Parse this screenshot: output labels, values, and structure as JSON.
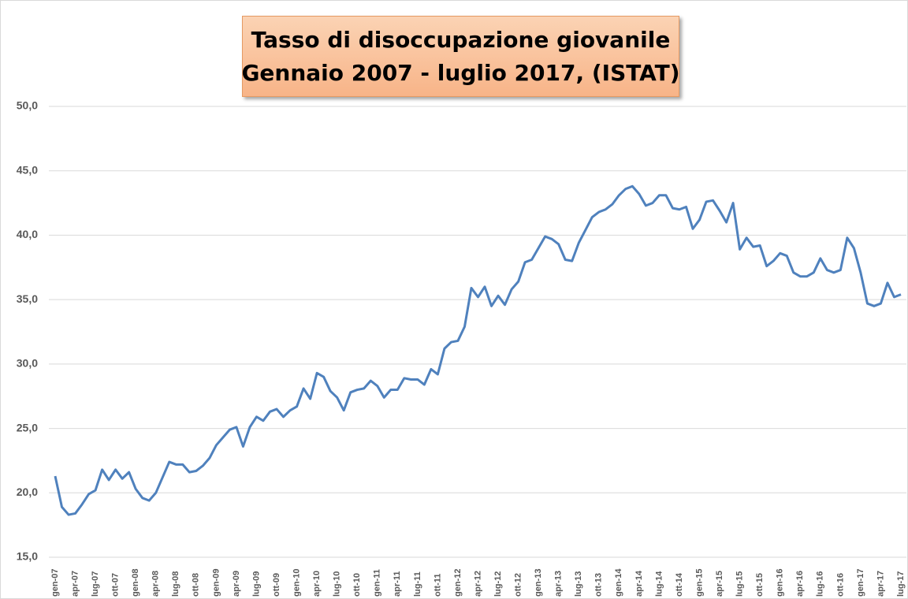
{
  "chart_data": {
    "type": "line",
    "title": "Tasso di disoccupazione giovanile",
    "subtitle": "Gennaio 2007 - luglio 2017, (ISTAT)",
    "categories": [
      "gen-07",
      null,
      null,
      "apr-07",
      null,
      null,
      "lug-07",
      null,
      null,
      "ott-07",
      null,
      null,
      "gen-08",
      null,
      null,
      "apr-08",
      null,
      null,
      "lug-08",
      null,
      null,
      "ott-08",
      null,
      null,
      "gen-09",
      null,
      null,
      "apr-09",
      null,
      null,
      "lug-09",
      null,
      null,
      "ott-09",
      null,
      null,
      "gen-10",
      null,
      null,
      "apr-10",
      null,
      null,
      "lug-10",
      null,
      null,
      "ott-10",
      null,
      null,
      "gen-11",
      null,
      null,
      "apr-11",
      null,
      null,
      "lug-11",
      null,
      null,
      "ott-11",
      null,
      null,
      "gen-12",
      null,
      null,
      "apr-12",
      null,
      null,
      "lug-12",
      null,
      null,
      "ott-12",
      null,
      null,
      "gen-13",
      null,
      null,
      "apr-13",
      null,
      null,
      "lug-13",
      null,
      null,
      "ott-13",
      null,
      null,
      "gen-14",
      null,
      null,
      "apr-14",
      null,
      null,
      "lug-14",
      null,
      null,
      "ott-14",
      null,
      null,
      "gen-15",
      null,
      null,
      "apr-15",
      null,
      null,
      "lug-15",
      null,
      null,
      "ott-15",
      null,
      null,
      "gen-16",
      null,
      null,
      "apr-16",
      null,
      null,
      "lug-16",
      null,
      null,
      "ott-16",
      null,
      null,
      "gen-17",
      null,
      null,
      "apr-17",
      null,
      null,
      "lug-17"
    ],
    "values": [
      21.3,
      18.9,
      18.3,
      18.4,
      19.1,
      19.9,
      20.2,
      21.8,
      21.0,
      21.8,
      21.1,
      21.6,
      20.3,
      19.6,
      19.4,
      20.0,
      21.2,
      22.4,
      22.2,
      22.2,
      21.6,
      21.7,
      22.1,
      22.7,
      23.7,
      24.3,
      24.9,
      25.1,
      23.6,
      25.1,
      25.9,
      25.6,
      26.3,
      26.5,
      25.9,
      26.4,
      26.7,
      28.1,
      27.3,
      29.3,
      29.0,
      27.9,
      27.4,
      26.4,
      27.8,
      28.0,
      28.1,
      28.7,
      28.3,
      27.4,
      28.0,
      28.0,
      28.9,
      28.8,
      28.8,
      28.4,
      29.6,
      29.2,
      31.2,
      31.7,
      31.8,
      32.9,
      35.9,
      35.2,
      36.0,
      34.5,
      35.3,
      34.6,
      35.8,
      36.4,
      37.9,
      38.1,
      39.0,
      39.9,
      39.7,
      39.3,
      38.1,
      38.0,
      39.4,
      40.4,
      41.4,
      41.8,
      42.0,
      42.4,
      43.1,
      43.6,
      43.8,
      43.2,
      42.3,
      42.5,
      43.1,
      43.1,
      42.1,
      42.0,
      42.2,
      40.5,
      41.2,
      42.6,
      42.7,
      41.9,
      41.0,
      42.5,
      38.9,
      39.8,
      39.1,
      39.2,
      37.6,
      38.0,
      38.6,
      38.4,
      37.1,
      36.8,
      36.8,
      37.1,
      38.2,
      37.3,
      37.1,
      37.3,
      39.8,
      39.0,
      37.1,
      34.7,
      34.5,
      34.7,
      36.3,
      35.2,
      35.4
    ],
    "color": "#4f81bd",
    "ylim": [
      15,
      50
    ],
    "yticks": [
      {
        "value": 15,
        "label": "15,0"
      },
      {
        "value": 20,
        "label": "20,0"
      },
      {
        "value": 25,
        "label": "25,0"
      },
      {
        "value": 30,
        "label": "30,0"
      },
      {
        "value": 35,
        "label": "35,0"
      },
      {
        "value": 40,
        "label": "40,0"
      },
      {
        "value": 45,
        "label": "45,0"
      },
      {
        "value": 50,
        "label": "50,0"
      }
    ],
    "grid": true
  }
}
